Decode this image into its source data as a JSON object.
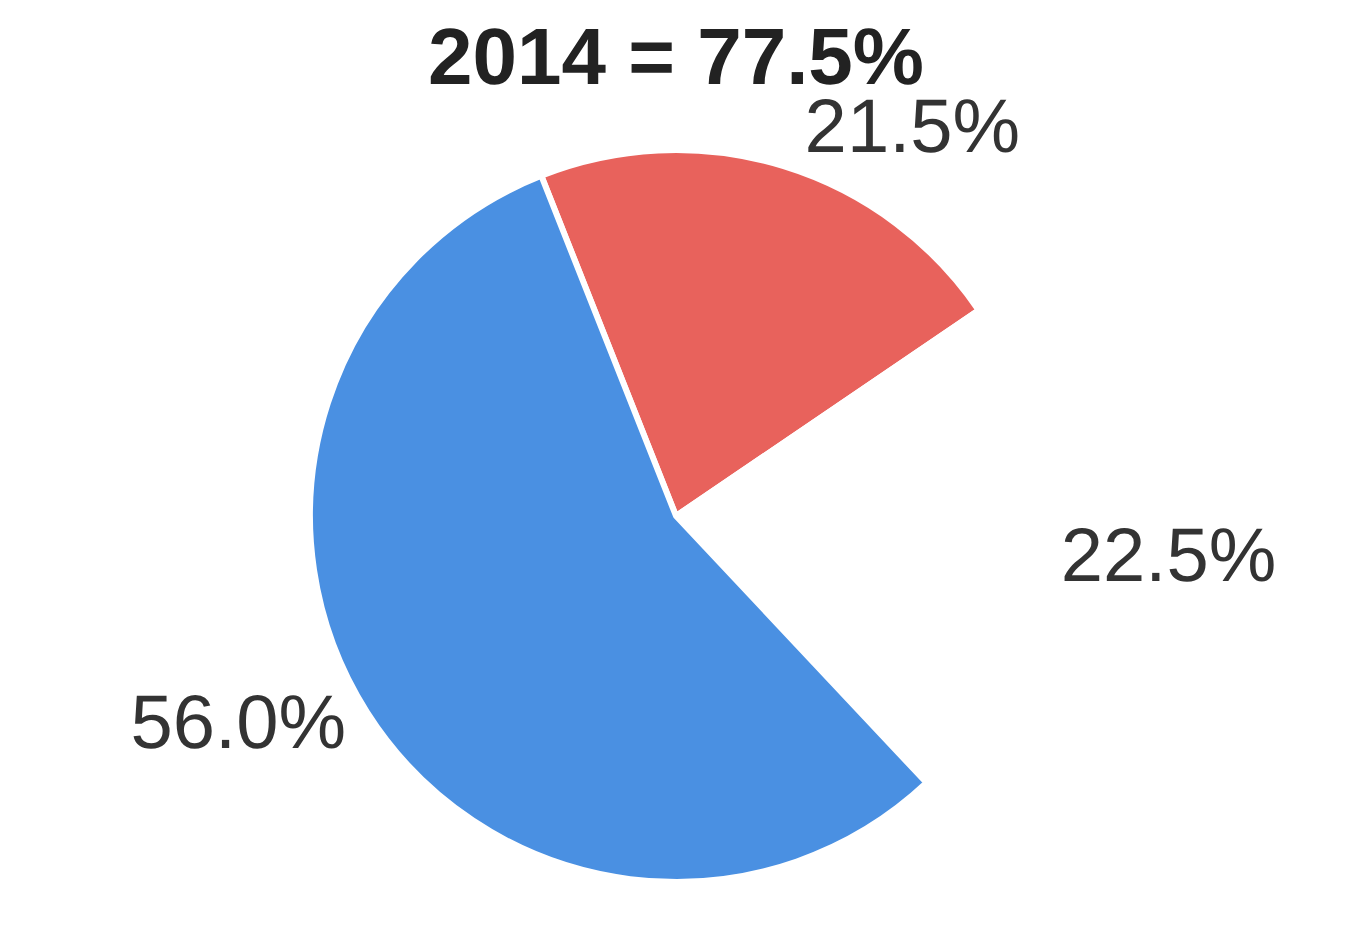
{
  "chart_data": {
    "type": "pie",
    "title": "2014 = 77.5%",
    "categories": [
      null,
      null,
      null
    ],
    "values": [
      21.5,
      22.5,
      56.0
    ],
    "colors": [
      "#e8625c",
      "#ffffff",
      "#4a90e2"
    ],
    "value_labels": [
      "21.5%",
      "22.5%",
      "56.0%"
    ],
    "legend": false
  }
}
